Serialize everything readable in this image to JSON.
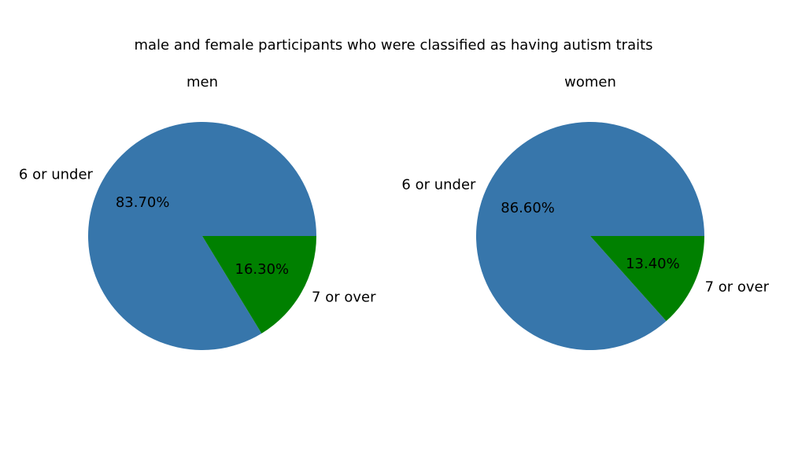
{
  "figure": {
    "title": "male and female participants who were classified as having autism traits"
  },
  "colors": {
    "slice_primary": "#3776ab",
    "slice_secondary": "#008000",
    "text": "#000000",
    "background": "#ffffff"
  },
  "chart_data": [
    {
      "type": "pie",
      "title": "men",
      "labels": [
        "6 or under",
        "7 or over"
      ],
      "values": [
        83.7,
        16.3
      ],
      "value_labels": [
        "83.70%",
        "16.30%"
      ],
      "colors": [
        "#3776ab",
        "#008000"
      ],
      "start_angle": 0,
      "direction": "counterclockwise"
    },
    {
      "type": "pie",
      "title": "women",
      "labels": [
        "6 or under",
        "7 or over"
      ],
      "values": [
        86.6,
        13.4
      ],
      "value_labels": [
        "86.60%",
        "13.40%"
      ],
      "colors": [
        "#3776ab",
        "#008000"
      ],
      "start_angle": 0,
      "direction": "counterclockwise"
    }
  ]
}
